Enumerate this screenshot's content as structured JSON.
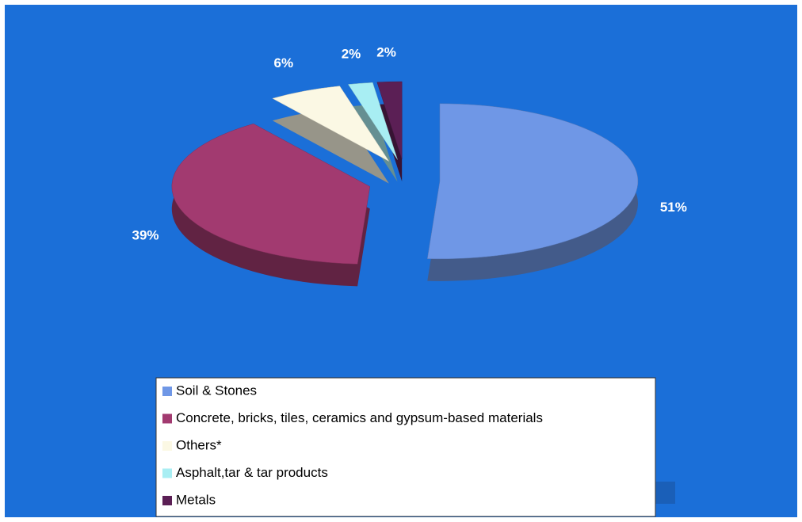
{
  "chart_data": {
    "type": "pie",
    "categories": [
      "Soil & Stones",
      "Concrete, bricks, tiles, ceramics and gypsum-based materials",
      "Others*",
      "Asphalt,tar & tar products",
      "Metals"
    ],
    "values": [
      51,
      39,
      6,
      2,
      2
    ],
    "value_labels": [
      "51%",
      "39%",
      "6%",
      "2%",
      "2%"
    ],
    "colors": [
      "#6f97e6",
      "#a23a70",
      "#fbf8e4",
      "#a8eef3",
      "#5b1f55"
    ],
    "legend": "bottom"
  }
}
